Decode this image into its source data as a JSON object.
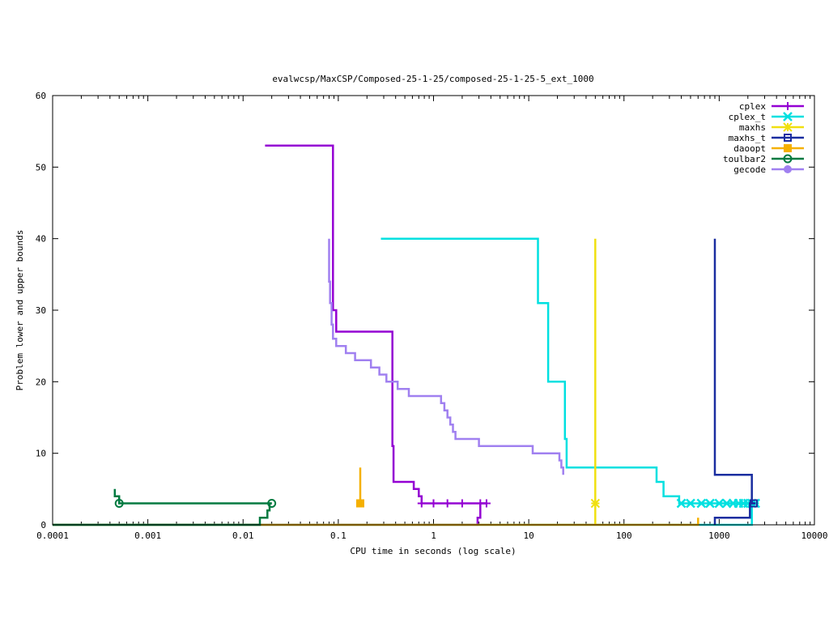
{
  "chart_data": {
    "type": "line",
    "title": "evalwcsp/MaxCSP/Composed-25-1-25/composed-25-1-25-5_ext_1000",
    "xlabel": "CPU time in seconds (log scale)",
    "ylabel": "Problem lower and upper bounds",
    "x_scale": "log",
    "xlim": [
      0.0001,
      10000
    ],
    "ylim": [
      0,
      60
    ],
    "x_ticks": [
      0.0001,
      0.001,
      0.01,
      0.1,
      1,
      10,
      100,
      1000,
      10000
    ],
    "x_tick_labels": [
      "0.0001",
      "0.001",
      "0.01",
      "0.1",
      "1",
      "10",
      "100",
      "1000",
      "10000"
    ],
    "y_ticks": [
      0,
      10,
      20,
      30,
      40,
      50,
      60
    ],
    "y_tick_labels": [
      "0",
      "10",
      "20",
      "30",
      "40",
      "50",
      "60"
    ],
    "grid": false,
    "legend_position": "top-right",
    "series": [
      {
        "name": "cplex",
        "color": "#9400d3",
        "marker": "plus",
        "upper": [
          [
            0.017,
            53
          ],
          [
            0.088,
            53
          ],
          [
            0.088,
            30
          ],
          [
            0.095,
            30
          ],
          [
            0.095,
            27
          ],
          [
            0.37,
            27
          ],
          [
            0.37,
            11
          ],
          [
            0.38,
            11
          ],
          [
            0.38,
            6
          ],
          [
            0.62,
            6
          ],
          [
            0.62,
            5
          ],
          [
            0.7,
            5
          ],
          [
            0.7,
            4
          ],
          [
            0.75,
            4
          ],
          [
            0.75,
            3
          ],
          [
            3.6,
            3
          ]
        ],
        "lower": [
          [
            0.0001,
            0
          ],
          [
            2.9,
            0
          ],
          [
            2.9,
            1
          ],
          [
            3.1,
            1
          ],
          [
            3.1,
            3
          ],
          [
            3.6,
            3
          ]
        ],
        "markers": [
          [
            0.75,
            3
          ],
          [
            1.0,
            3
          ],
          [
            1.4,
            3
          ],
          [
            2.0,
            3
          ],
          [
            3.1,
            3
          ],
          [
            3.6,
            3
          ]
        ]
      },
      {
        "name": "cplex_t",
        "color": "#00e0e0",
        "marker": "x",
        "upper": [
          [
            0.28,
            40
          ],
          [
            12.5,
            40
          ],
          [
            12.5,
            31
          ],
          [
            16,
            31
          ],
          [
            16,
            20
          ],
          [
            24,
            20
          ],
          [
            24,
            12
          ],
          [
            25,
            12
          ],
          [
            25,
            8
          ],
          [
            220,
            8
          ],
          [
            220,
            6
          ],
          [
            260,
            6
          ],
          [
            260,
            4
          ],
          [
            380,
            4
          ],
          [
            380,
            3
          ],
          [
            2600,
            3
          ]
        ],
        "lower": [
          [
            0.0001,
            0
          ],
          [
            2200,
            0
          ],
          [
            2200,
            3
          ],
          [
            2600,
            3
          ]
        ],
        "markers": [
          [
            400,
            3
          ],
          [
            500,
            3
          ],
          [
            650,
            3
          ],
          [
            800,
            3
          ],
          [
            1000,
            3
          ],
          [
            1200,
            3
          ],
          [
            1400,
            3
          ],
          [
            1600,
            3
          ],
          [
            1800,
            3
          ],
          [
            2000,
            3
          ],
          [
            2200,
            3
          ],
          [
            2400,
            3
          ]
        ]
      },
      {
        "name": "maxhs",
        "color": "#f0e010",
        "marker": "star",
        "upper": [
          [
            50,
            40
          ],
          [
            50,
            3
          ]
        ],
        "lower": [
          [
            50,
            0
          ],
          [
            50,
            3
          ]
        ],
        "markers": [
          [
            50,
            3
          ]
        ]
      },
      {
        "name": "maxhs_t",
        "color": "#1a2ea0",
        "marker": "square",
        "upper": [
          [
            900,
            40
          ],
          [
            900,
            7
          ],
          [
            2200,
            7
          ],
          [
            2200,
            3
          ],
          [
            2400,
            3
          ]
        ],
        "lower": [
          [
            900,
            0
          ],
          [
            900,
            1
          ],
          [
            2100,
            1
          ],
          [
            2100,
            3
          ],
          [
            2400,
            3
          ]
        ],
        "markers": [
          [
            2300,
            3
          ]
        ]
      },
      {
        "name": "daoopt",
        "color": "#f5b000",
        "marker": "filled-square",
        "upper": [
          [
            0.17,
            8
          ],
          [
            0.17,
            3
          ]
        ],
        "lower": [
          [
            0.0001,
            0
          ],
          [
            600,
            0
          ],
          [
            600,
            1
          ]
        ],
        "markers": [
          [
            0.17,
            3
          ]
        ]
      },
      {
        "name": "toulbar2",
        "color": "#007a40",
        "marker": "circle",
        "upper": [
          [
            0.00045,
            5
          ],
          [
            0.00045,
            4
          ],
          [
            0.0005,
            4
          ],
          [
            0.0005,
            3
          ],
          [
            0.02,
            3
          ]
        ],
        "lower": [
          [
            0.0001,
            0
          ],
          [
            0.015,
            0
          ],
          [
            0.015,
            1
          ],
          [
            0.018,
            1
          ],
          [
            0.018,
            2
          ],
          [
            0.019,
            2
          ],
          [
            0.019,
            3
          ],
          [
            0.02,
            3
          ]
        ],
        "markers": [
          [
            0.0005,
            3
          ],
          [
            0.02,
            3
          ]
        ]
      },
      {
        "name": "gecode",
        "color": "#a080f0",
        "marker": "filled-circle",
        "upper": [
          [
            0.08,
            40
          ],
          [
            0.08,
            34
          ],
          [
            0.082,
            34
          ],
          [
            0.082,
            31
          ],
          [
            0.085,
            31
          ],
          [
            0.085,
            28
          ],
          [
            0.088,
            28
          ],
          [
            0.088,
            26
          ],
          [
            0.095,
            26
          ],
          [
            0.095,
            25
          ],
          [
            0.12,
            25
          ],
          [
            0.12,
            24
          ],
          [
            0.15,
            24
          ],
          [
            0.15,
            23
          ],
          [
            0.22,
            23
          ],
          [
            0.22,
            22
          ],
          [
            0.27,
            22
          ],
          [
            0.27,
            21
          ],
          [
            0.32,
            21
          ],
          [
            0.32,
            20
          ],
          [
            0.42,
            20
          ],
          [
            0.42,
            19
          ],
          [
            0.55,
            19
          ],
          [
            0.55,
            18
          ],
          [
            1.2,
            18
          ],
          [
            1.2,
            17
          ],
          [
            1.3,
            17
          ],
          [
            1.3,
            16
          ],
          [
            1.4,
            16
          ],
          [
            1.4,
            15
          ],
          [
            1.5,
            15
          ],
          [
            1.5,
            14
          ],
          [
            1.6,
            14
          ],
          [
            1.6,
            13
          ],
          [
            1.7,
            13
          ],
          [
            1.7,
            12
          ],
          [
            3.0,
            12
          ],
          [
            3.0,
            11
          ],
          [
            11,
            11
          ],
          [
            11,
            10
          ],
          [
            21,
            10
          ],
          [
            21,
            9
          ],
          [
            22,
            9
          ],
          [
            22,
            8
          ],
          [
            23,
            8
          ],
          [
            23,
            7
          ]
        ],
        "lower": [],
        "markers": []
      }
    ]
  }
}
